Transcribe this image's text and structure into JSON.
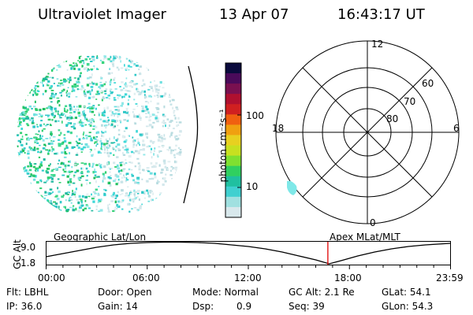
{
  "header": {
    "instrument": "Ultraviolet Imager",
    "date": "13 Apr 07",
    "time": "16:43:17 UT"
  },
  "colorbar": {
    "unit": "photon cm⁻²s⁻¹",
    "ticks": [
      "100",
      "10"
    ],
    "colors": [
      "#0a0a3c",
      "#4a0a5a",
      "#7a1050",
      "#b01030",
      "#d02020",
      "#f06010",
      "#f0a010",
      "#e8d020",
      "#c8e020",
      "#80e030",
      "#30d060",
      "#20c0a0",
      "#40d0d0",
      "#a0e0e0",
      "#d8e8ec"
    ]
  },
  "polar": {
    "labels": {
      "top": "12",
      "bottom": "0",
      "left": "18",
      "right": "6"
    },
    "latitudes": [
      "60",
      "70",
      "80"
    ]
  },
  "timeline": {
    "left_title": "Geographic Lat/Lon",
    "right_title": "Apex MLat/MLT",
    "axis_label": "GC Alt",
    "y_ticks": [
      "9.0",
      "1.8"
    ],
    "x_ticks": [
      "00:00",
      "06:00",
      "12:00",
      "18:00",
      "23:59"
    ],
    "marker_time_hours": 16.72,
    "marker_color": "#e00000"
  },
  "info": {
    "flt": "Flt: LBHL",
    "ip": "IP: 36.0",
    "door": "Door: Open",
    "gain": "Gain: 14",
    "mode": "Mode: Normal",
    "dsp_label": "Dsp:",
    "dsp_value": "0.9",
    "gc_alt": "GC Alt: 2.1 Re",
    "seq": "Seq: 39",
    "glat": "GLat:  54.1",
    "glon": "GLon:  54.3"
  }
}
